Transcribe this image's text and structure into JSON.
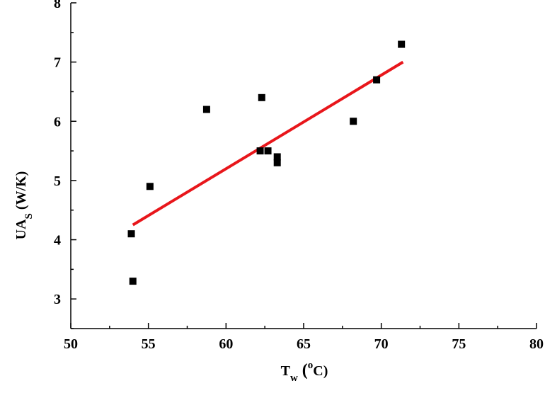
{
  "chart_data": {
    "type": "scatter",
    "x_label": [
      "T",
      "w",
      " (",
      "o",
      "C)"
    ],
    "y_label": [
      "UA",
      "S",
      " (W/K)"
    ],
    "x": [
      53.9,
      54.0,
      55.1,
      58.75,
      62.3,
      62.2,
      62.7,
      63.3,
      63.3,
      68.2,
      69.7,
      71.3
    ],
    "values": [
      4.1,
      3.3,
      4.9,
      6.2,
      6.4,
      5.5,
      5.5,
      5.4,
      5.3,
      6.0,
      6.7,
      7.3
    ],
    "color": "#000000",
    "fit": {
      "x": [
        54.0,
        71.4
      ],
      "values": [
        4.25,
        7.0
      ],
      "color": "#e8161b"
    },
    "xlim": [
      50,
      80
    ],
    "xticks": [
      50,
      55,
      60,
      65,
      70,
      75,
      80
    ],
    "ylim": [
      2.5,
      8
    ],
    "yticks": [
      3,
      4,
      5,
      6,
      7,
      8
    ]
  }
}
